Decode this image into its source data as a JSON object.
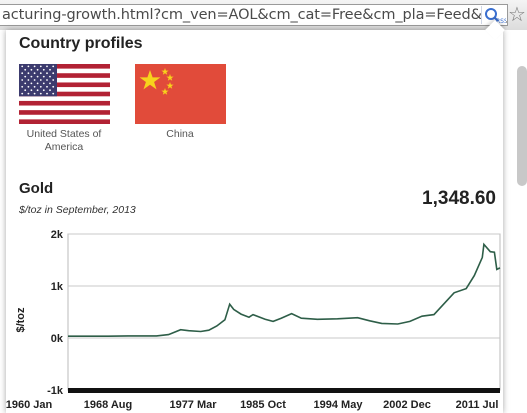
{
  "browser": {
    "url_text": "acturing-growth.html?cm_ven=AOL&cm_cat=Free&cm_pla=Feed&cm_ite"
  },
  "popup": {
    "profiles_title": "Country profiles",
    "countries": [
      {
        "name": "United States of America",
        "flag": "us-flag"
      },
      {
        "name": "China",
        "flag": "china-flag"
      }
    ]
  },
  "gold": {
    "title": "Gold",
    "subtitle": "$/toz in September, 2013",
    "value": "1,348.60"
  },
  "colors": {
    "line": "#2e5e48",
    "china_red": "#e14b3a",
    "china_star": "#f7d21c",
    "us_blue": "#3c3b6e",
    "us_red": "#b22234"
  },
  "chart_data": {
    "type": "line",
    "ylabel": "$/toz",
    "ylim": [
      -1000,
      2000
    ],
    "yticks": [
      "2k",
      "1k",
      "0k",
      "-1k"
    ],
    "ytick_values": [
      2000,
      1000,
      0,
      -1000
    ],
    "xticks": [
      "1960 Jan",
      "1968 Aug",
      "1977 Mar",
      "1985 Oct",
      "1994 May",
      "2002 Dec",
      "2011 Jul"
    ],
    "xlim": [
      1960.0,
      2013.7
    ],
    "grid": true,
    "series": [
      {
        "x": [
          1960.0,
          1965.0,
          1968.0,
          1971.0,
          1972.5,
          1974.0,
          1975.0,
          1976.5,
          1977.5,
          1978.5,
          1979.5,
          1980.1,
          1980.6,
          1981.5,
          1982.5,
          1983.0,
          1984.5,
          1985.5,
          1986.5,
          1987.8,
          1989.0,
          1991.0,
          1993.5,
          1996.0,
          1997.5,
          1999.0,
          2001.0,
          2002.5,
          2004.0,
          2005.5,
          2006.5,
          2008.0,
          2009.5,
          2010.5,
          2011.5,
          2011.7,
          2012.5,
          2013.0,
          2013.3,
          2013.7
        ],
        "y": [
          35,
          35,
          40,
          41,
          65,
          160,
          140,
          125,
          150,
          230,
          350,
          650,
          550,
          460,
          400,
          450,
          360,
          320,
          380,
          470,
          380,
          360,
          370,
          390,
          330,
          280,
          270,
          320,
          420,
          450,
          620,
          870,
          950,
          1200,
          1550,
          1800,
          1660,
          1650,
          1320,
          1348
        ]
      }
    ]
  }
}
